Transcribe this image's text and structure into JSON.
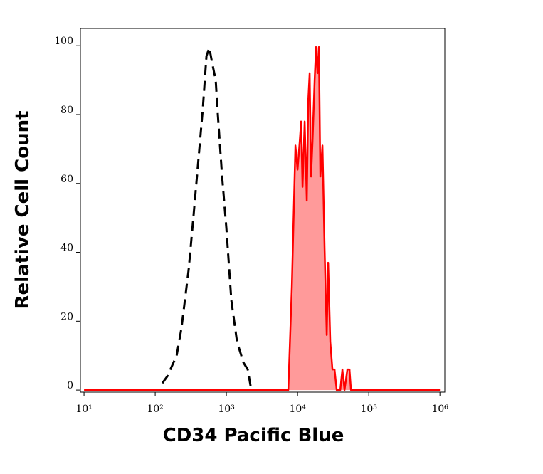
{
  "chart_data": {
    "type": "histogram-overlay",
    "x_label": "CD34 Pacific Blue",
    "y_label": "Relative Cell Count",
    "xlog": true,
    "xlim": [
      8.9,
      1170000
    ],
    "ylim": [
      -0.6,
      105
    ],
    "xticks": [
      {
        "value": 10,
        "label": "10¹"
      },
      {
        "value": 100,
        "label": "10²"
      },
      {
        "value": 1000,
        "label": "10³"
      },
      {
        "value": 10000,
        "label": "10⁴"
      },
      {
        "value": 100000,
        "label": "10⁵"
      },
      {
        "value": 1000000,
        "label": "10⁶"
      }
    ],
    "yticks": [
      0,
      20,
      40,
      60,
      80,
      100
    ],
    "series": [
      {
        "color": "#000000",
        "dashed": true,
        "fill": null,
        "x": [
          126,
          148,
          200,
          234,
          295,
          347,
          417,
          468,
          525,
          575,
          631,
          708,
          759,
          871,
          1000,
          1175,
          1413,
          1738,
          1995,
          2239
        ],
        "values": [
          2,
          4,
          10,
          18,
          35,
          51,
          70,
          82,
          97,
          99.4,
          95,
          90,
          80,
          62,
          47,
          26,
          14,
          8,
          6,
          0
        ]
      },
      {
        "color": "#ff0000",
        "dashed": false,
        "fill": "#ff9a9a",
        "x": [
          10,
          7413,
          8318,
          9333,
          10000,
          10715,
          11220,
          11749,
          12589,
          13490,
          14125,
          14791,
          15488,
          16218,
          17378,
          18197,
          19055,
          19953,
          20893,
          22387,
          23988,
          25704,
          26915,
          28840,
          30903,
          33113,
          35481,
          39811,
          42658,
          45709,
          50119,
          53703,
          56234,
          1000000
        ],
        "values": [
          0,
          0,
          30,
          71,
          64,
          72,
          78,
          59,
          78,
          55,
          84,
          92,
          62,
          72,
          90,
          99.6,
          92,
          99.6,
          62,
          71,
          41,
          16,
          37,
          14,
          6,
          6,
          0,
          0,
          6,
          0,
          6,
          6,
          0,
          0
        ]
      }
    ]
  }
}
